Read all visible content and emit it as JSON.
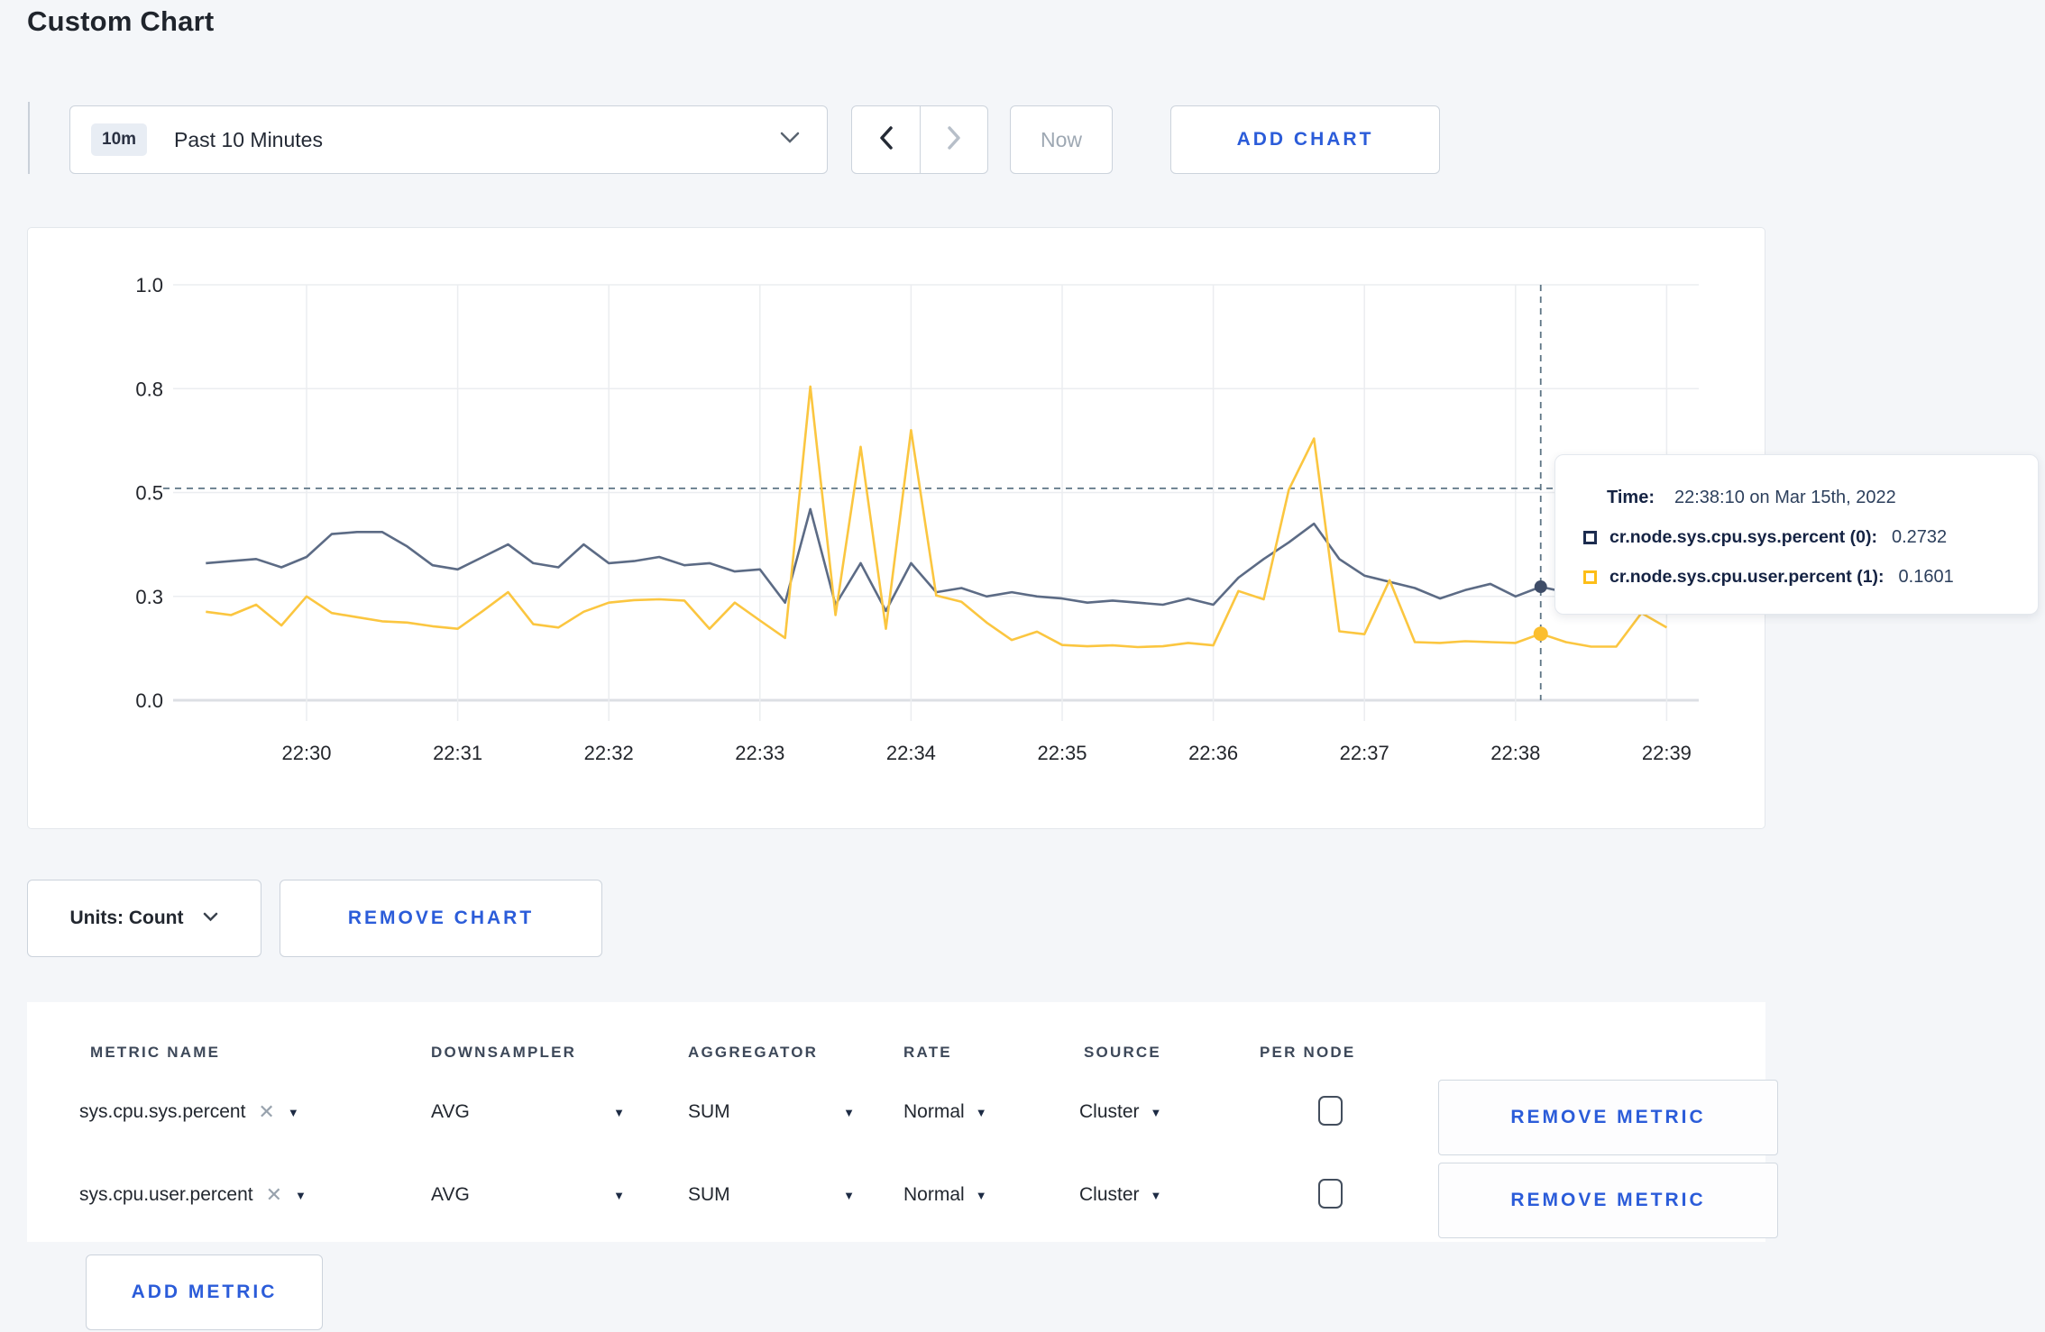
{
  "page": {
    "title": "Custom Chart"
  },
  "toolbar": {
    "time_range": {
      "badge": "10m",
      "label": "Past 10 Minutes"
    },
    "now_label": "Now",
    "add_chart_label": "ADD CHART",
    "icons": {
      "prev": "chevron-left-icon",
      "next": "chevron-right-icon",
      "open": "chevron-down-icon"
    }
  },
  "chart_data": {
    "type": "line",
    "title": "",
    "xlabel": "",
    "ylabel": "",
    "ylim": [
      0,
      1
    ],
    "grid": true,
    "start_time": "22:29:20",
    "interval_seconds": 10,
    "x_ticks": [
      "22:30",
      "22:31",
      "22:32",
      "22:33",
      "22:34",
      "22:35",
      "22:36",
      "22:37",
      "22:38",
      "22:39"
    ],
    "y_ticks": [
      {
        "label": "0.0",
        "value": 0
      },
      {
        "label": "0.3",
        "value": 0.25
      },
      {
        "label": "0.5",
        "value": 0.5
      },
      {
        "label": "0.8",
        "value": 0.75
      },
      {
        "label": "1.0",
        "value": 1
      }
    ],
    "series": [
      {
        "name": "cr.node.sys.cpu.sys.percent",
        "color": "#5c6b85",
        "values": [
          0.33,
          0.335,
          0.34,
          0.32,
          0.345,
          0.4,
          0.405,
          0.405,
          0.37,
          0.325,
          0.315,
          0.345,
          0.375,
          0.33,
          0.32,
          0.375,
          0.33,
          0.335,
          0.345,
          0.325,
          0.33,
          0.31,
          0.315,
          0.235,
          0.46,
          0.23,
          0.33,
          0.215,
          0.33,
          0.26,
          0.27,
          0.25,
          0.26,
          0.25,
          0.245,
          0.235,
          0.24,
          0.235,
          0.23,
          0.245,
          0.23,
          0.295,
          0.34,
          0.38,
          0.425,
          0.34,
          0.3,
          0.285,
          0.27,
          0.245,
          0.265,
          0.28,
          0.25,
          0.2732,
          0.26,
          0.27,
          0.26,
          0.27,
          0.27
        ]
      },
      {
        "name": "cr.node.sys.cpu.user.percent",
        "color": "#fbc640",
        "values": [
          0.213,
          0.205,
          0.23,
          0.18,
          0.25,
          0.21,
          0.2,
          0.19,
          0.187,
          0.178,
          0.172,
          0.215,
          0.26,
          0.183,
          0.175,
          0.213,
          0.235,
          0.241,
          0.243,
          0.24,
          0.172,
          0.235,
          0.192,
          0.15,
          0.755,
          0.205,
          0.61,
          0.172,
          0.65,
          0.252,
          0.237,
          0.187,
          0.145,
          0.165,
          0.133,
          0.13,
          0.132,
          0.128,
          0.13,
          0.138,
          0.132,
          0.263,
          0.243,
          0.507,
          0.63,
          0.166,
          0.159,
          0.289,
          0.14,
          0.138,
          0.142,
          0.14,
          0.138,
          0.1601,
          0.14,
          0.129,
          0.129,
          0.21,
          0.175
        ]
      }
    ],
    "crosshair": {
      "time": "22:38:10",
      "index": 53,
      "cursor_value": 0.51,
      "dot_colors": [
        "#3f4d68",
        "#fbbe2e"
      ]
    },
    "legend_position": "tooltip"
  },
  "tooltip": {
    "time_label": "Time:",
    "time_value": "22:38:10 on Mar 15th, 2022",
    "rows": [
      {
        "name": "cr.node.sys.cpu.sys.percent (0):",
        "value": "0.2732",
        "swatch_color": "#1c2c4f"
      },
      {
        "name": "cr.node.sys.cpu.user.percent (1):",
        "value": "0.1601",
        "swatch_color": "#fdbe18"
      }
    ]
  },
  "controls": {
    "units_label": "Units: Count",
    "remove_chart_label": "REMOVE CHART",
    "add_metric_label": "ADD METRIC"
  },
  "table": {
    "headers": [
      "METRIC NAME",
      "DOWNSAMPLER",
      "AGGREGATOR",
      "RATE",
      "SOURCE",
      "PER NODE"
    ],
    "remove_metric_label": "REMOVE METRIC",
    "rows": [
      {
        "metric": "sys.cpu.sys.percent",
        "downsampler": "AVG",
        "aggregator": "SUM",
        "rate": "Normal",
        "source": "Cluster",
        "per_node_checked": false
      },
      {
        "metric": "sys.cpu.user.percent",
        "downsampler": "AVG",
        "aggregator": "SUM",
        "rate": "Normal",
        "source": "Cluster",
        "per_node_checked": false
      }
    ]
  },
  "colors": {
    "accent_blue": "#2b5cd9",
    "page_bg": "#f4f6f9",
    "grid_line": "#ebedf0",
    "zero_axis": "#dcdfe4",
    "crosshair": "#5e7585"
  }
}
